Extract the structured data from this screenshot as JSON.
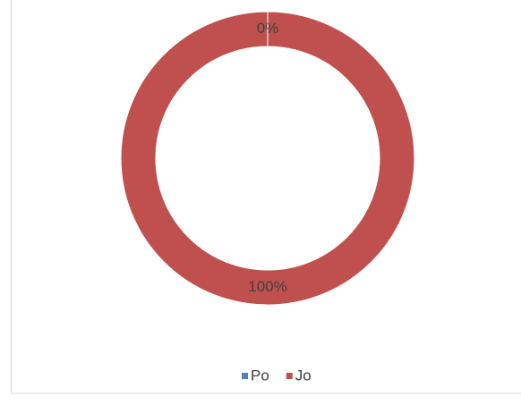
{
  "chart_data": {
    "type": "doughnut",
    "categories": [
      "Po",
      "Jo"
    ],
    "values": [
      0,
      100
    ],
    "value_labels": [
      "0%",
      "100%"
    ],
    "colors": [
      "#4f81bd",
      "#c0504d"
    ],
    "legend": "bottom"
  }
}
